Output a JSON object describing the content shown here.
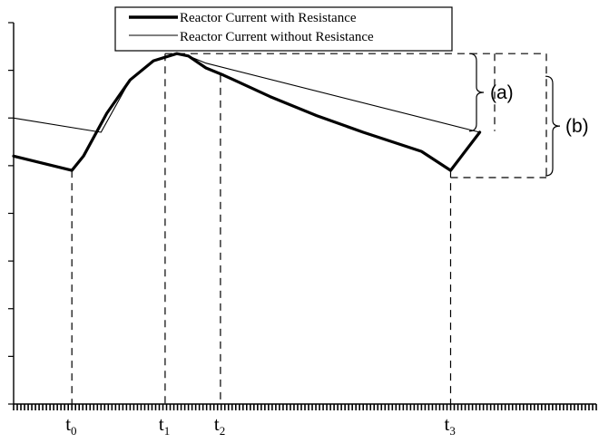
{
  "chart_data": {
    "type": "line",
    "title": "",
    "xlabel": "",
    "ylabel": "",
    "xlim": [
      0,
      10
    ],
    "ylim": [
      0,
      8
    ],
    "grid": false,
    "legend_position": "top-center",
    "series": [
      {
        "name": "Reactor Current with Resistance",
        "color": "#000000",
        "style": "thick",
        "x": [
          0,
          0.5,
          1.0,
          1.2,
          1.6,
          2.0,
          2.4,
          2.8,
          3.0,
          3.3,
          3.6,
          4.4,
          5.2,
          6.0,
          7.0,
          7.5,
          8.0
        ],
        "y": [
          5.2,
          5.05,
          4.9,
          5.2,
          6.1,
          6.8,
          7.2,
          7.35,
          7.3,
          7.05,
          6.9,
          6.45,
          6.05,
          5.7,
          5.3,
          4.9,
          5.7
        ]
      },
      {
        "name": "Reactor Current without Resistance",
        "color": "#000000",
        "style": "thin",
        "x": [
          0,
          1.5,
          2.0,
          2.4,
          2.8,
          3.0,
          3.3,
          8.0
        ],
        "y": [
          6.0,
          5.7,
          6.8,
          7.2,
          7.35,
          7.3,
          7.15,
          5.7
        ]
      }
    ],
    "annotations": {
      "t_marks": [
        {
          "label": "t",
          "sub": "0",
          "x": 1.0,
          "y": 4.9
        },
        {
          "label": "t",
          "sub": "1",
          "x": 2.6,
          "y": 7.35
        },
        {
          "label": "t",
          "sub": "2",
          "x": 3.55,
          "y": 6.9
        },
        {
          "label": "t",
          "sub": "3",
          "x": 7.5,
          "y": 4.9
        }
      ],
      "peak_y": 7.35,
      "a_bottom_y": 5.8,
      "b_bottom_y": 4.75,
      "bracket_a": "(a)",
      "bracket_b": "(b)"
    }
  }
}
